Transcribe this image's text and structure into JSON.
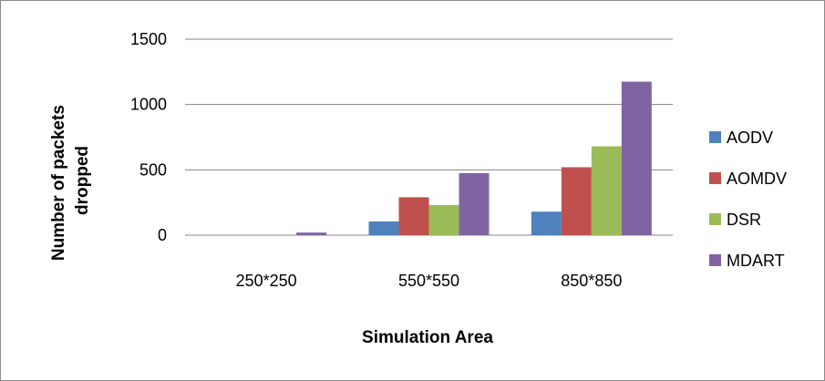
{
  "chart_data": {
    "type": "bar",
    "title": "",
    "xlabel": "Simulation Area",
    "ylabel_lines": [
      "Number of packets",
      "dropped"
    ],
    "categories": [
      "250*250",
      "550*550",
      "850*850"
    ],
    "ylim": [
      0,
      1500
    ],
    "yticks": [
      0,
      500,
      1000,
      1500
    ],
    "grid": true,
    "legend_position": "right",
    "series": [
      {
        "name": "AODV",
        "color": "#4f81bd",
        "values": [
          0,
          105,
          180
        ]
      },
      {
        "name": "AOMDV",
        "color": "#c0504d",
        "values": [
          0,
          290,
          520
        ]
      },
      {
        "name": "DSR",
        "color": "#9bbb59",
        "values": [
          0,
          230,
          680
        ]
      },
      {
        "name": "MDART",
        "color": "#8064a2",
        "values": [
          20,
          475,
          1175
        ]
      }
    ]
  }
}
